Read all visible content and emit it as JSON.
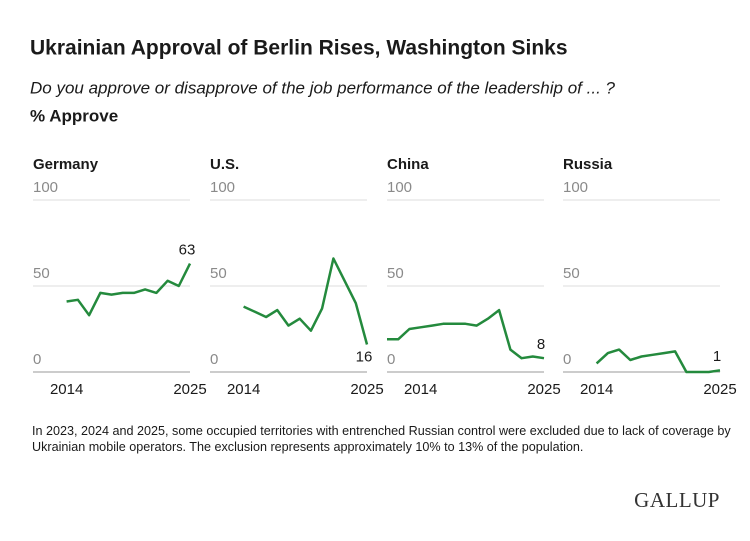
{
  "title": "Ukrainian Approval of Berlin Rises, Washington Sinks",
  "subtitle": "Do you approve or disapprove of the job performance of the leadership of ... ?",
  "unit_label": "% Approve",
  "note": "In 2023, 2024 and 2025, some occupied territories with entrenched Russian control were excluded due to lack of coverage by Ukrainian mobile operators. The exclusion represents approximately 10% to 13% of the population.",
  "brand": "GALLUP",
  "chart_data": [
    {
      "type": "line",
      "title": "Germany",
      "color": "#248a3d",
      "x": [
        2014,
        2015,
        2016,
        2017,
        2018,
        2019,
        2020,
        2021,
        2022,
        2023,
        2024,
        2025
      ],
      "values": [
        41,
        42,
        33,
        46,
        45,
        46,
        46,
        48,
        46,
        53,
        50,
        63
      ],
      "xlim": [
        2011,
        2025
      ],
      "xticks": [
        2014,
        2025
      ],
      "ylim": [
        0,
        100
      ],
      "yticks": [
        0,
        50,
        100
      ],
      "grid": true,
      "label_last": true,
      "label_position": "above"
    },
    {
      "type": "line",
      "title": "U.S.",
      "color": "#248a3d",
      "x": [
        2014,
        2015,
        2016,
        2017,
        2018,
        2019,
        2020,
        2021,
        2022,
        2023,
        2024,
        2025
      ],
      "values": [
        38,
        35,
        32,
        36,
        27,
        31,
        24,
        37,
        66,
        53,
        40,
        16
      ],
      "xlim": [
        2011,
        2025
      ],
      "xticks": [
        2014,
        2025
      ],
      "ylim": [
        0,
        100
      ],
      "yticks": [
        0,
        50,
        100
      ],
      "grid": true,
      "label_last": true,
      "label_position": "below"
    },
    {
      "type": "line",
      "title": "China",
      "color": "#248a3d",
      "x": [
        2011,
        2012,
        2013,
        2014,
        2015,
        2016,
        2017,
        2018,
        2019,
        2020,
        2021,
        2022,
        2023,
        2024,
        2025
      ],
      "values": [
        19,
        19,
        25,
        26,
        27,
        28,
        28,
        28,
        27,
        31,
        36,
        13,
        8,
        9,
        8
      ],
      "xlim": [
        2011,
        2025
      ],
      "xticks": [
        2014,
        2025
      ],
      "ylim": [
        0,
        100
      ],
      "yticks": [
        0,
        50,
        100
      ],
      "grid": true,
      "label_last": true,
      "label_position": "above"
    },
    {
      "type": "line",
      "title": "Russia",
      "color": "#248a3d",
      "x": [
        2014,
        2015,
        2016,
        2017,
        2018,
        2019,
        2020,
        2021,
        2022,
        2023,
        2024,
        2025
      ],
      "values": [
        5,
        11,
        13,
        7,
        9,
        10,
        11,
        12,
        0,
        0,
        0,
        1
      ],
      "xlim": [
        2011,
        2025
      ],
      "xticks": [
        2014,
        2025
      ],
      "ylim": [
        0,
        100
      ],
      "yticks": [
        0,
        50,
        100
      ],
      "grid": true,
      "label_last": true,
      "label_position": "above"
    }
  ]
}
